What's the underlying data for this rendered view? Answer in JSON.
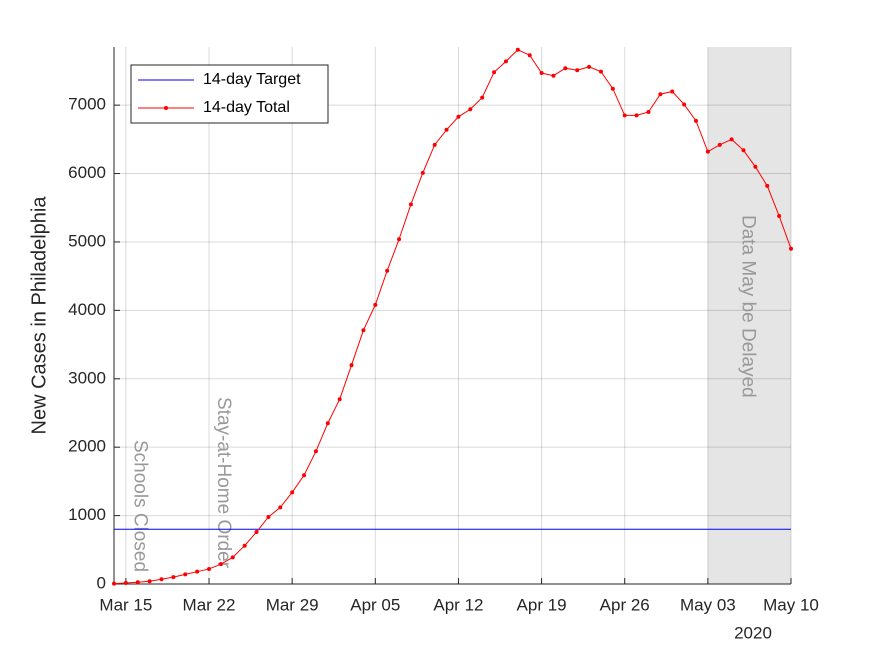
{
  "chart_data": {
    "type": "line",
    "ylabel": "New Cases in Philadelphia",
    "x_year_label": "2020",
    "xlim": [
      "2020-03-14",
      "2020-05-10"
    ],
    "xticks": [
      {
        "value": "2020-03-15",
        "label": "Mar 15"
      },
      {
        "value": "2020-03-22",
        "label": "Mar 22"
      },
      {
        "value": "2020-03-29",
        "label": "Mar 29"
      },
      {
        "value": "2020-04-05",
        "label": "Apr 05"
      },
      {
        "value": "2020-04-12",
        "label": "Apr 12"
      },
      {
        "value": "2020-04-19",
        "label": "Apr 19"
      },
      {
        "value": "2020-04-26",
        "label": "Apr 26"
      },
      {
        "value": "2020-05-03",
        "label": "May 03"
      },
      {
        "value": "2020-05-10",
        "label": "May 10"
      }
    ],
    "ylim": [
      0,
      7850
    ],
    "yticks": [
      0,
      1000,
      2000,
      3000,
      4000,
      5000,
      6000,
      7000
    ],
    "grid": true,
    "legend": "upper left",
    "x": [
      "2020-03-14",
      "2020-03-15",
      "2020-03-16",
      "2020-03-17",
      "2020-03-18",
      "2020-03-19",
      "2020-03-20",
      "2020-03-21",
      "2020-03-22",
      "2020-03-23",
      "2020-03-24",
      "2020-03-25",
      "2020-03-26",
      "2020-03-27",
      "2020-03-28",
      "2020-03-29",
      "2020-03-30",
      "2020-03-31",
      "2020-04-01",
      "2020-04-02",
      "2020-04-03",
      "2020-04-04",
      "2020-04-05",
      "2020-04-06",
      "2020-04-07",
      "2020-04-08",
      "2020-04-09",
      "2020-04-10",
      "2020-04-11",
      "2020-04-12",
      "2020-04-13",
      "2020-04-14",
      "2020-04-15",
      "2020-04-16",
      "2020-04-17",
      "2020-04-18",
      "2020-04-19",
      "2020-04-20",
      "2020-04-21",
      "2020-04-22",
      "2020-04-23",
      "2020-04-24",
      "2020-04-25",
      "2020-04-26",
      "2020-04-27",
      "2020-04-28",
      "2020-04-29",
      "2020-04-30",
      "2020-05-01",
      "2020-05-02",
      "2020-05-03",
      "2020-05-04",
      "2020-05-05",
      "2020-05-06",
      "2020-05-07",
      "2020-05-08",
      "2020-05-09",
      "2020-05-10"
    ],
    "series": [
      {
        "name": "14-day Target",
        "color": "#0000ff",
        "marker": false,
        "values": [
          800,
          800,
          800,
          800,
          800,
          800,
          800,
          800,
          800,
          800,
          800,
          800,
          800,
          800,
          800,
          800,
          800,
          800,
          800,
          800,
          800,
          800,
          800,
          800,
          800,
          800,
          800,
          800,
          800,
          800,
          800,
          800,
          800,
          800,
          800,
          800,
          800,
          800,
          800,
          800,
          800,
          800,
          800,
          800,
          800,
          800,
          800,
          800,
          800,
          800,
          800,
          800,
          800,
          800,
          800,
          800,
          800,
          800
        ]
      },
      {
        "name": "14-day Total",
        "color": "#ff0000",
        "marker": true,
        "values": [
          5,
          15,
          25,
          40,
          70,
          100,
          140,
          180,
          220,
          290,
          390,
          560,
          760,
          980,
          1120,
          1340,
          1590,
          1940,
          2350,
          2700,
          3200,
          3710,
          4080,
          4580,
          5040,
          5550,
          6010,
          6420,
          6640,
          6830,
          6940,
          7110,
          7480,
          7640,
          7810,
          7730,
          7470,
          7430,
          7540,
          7510,
          7560,
          7490,
          7240,
          6850,
          6850,
          6900,
          7160,
          7200,
          7010,
          6770,
          6320,
          6420,
          6500,
          6340,
          6100,
          5820,
          5380,
          4900
        ]
      }
    ],
    "annotations": [
      {
        "text": "Schools Closed",
        "x": "2020-03-16"
      },
      {
        "text": "Stay-at-Home Order",
        "x": "2020-03-23"
      }
    ],
    "shade": {
      "x": [
        "2020-05-03",
        "2020-05-10"
      ],
      "color": "#e5e5e5",
      "text": "Data May be Delayed"
    }
  }
}
